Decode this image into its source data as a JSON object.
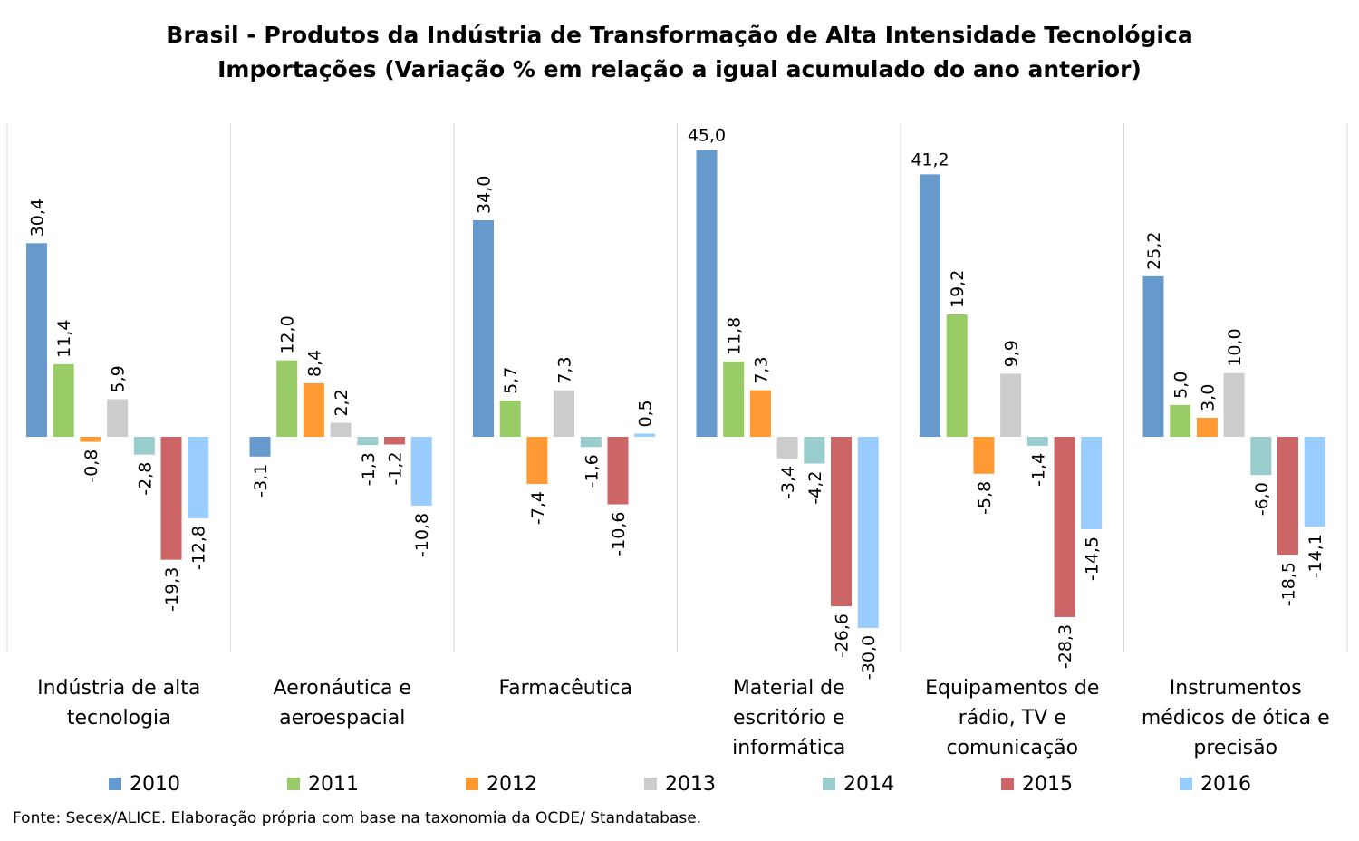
{
  "chart_data": {
    "type": "bar",
    "title": "Brasil - Produtos da Indústria de Transformação de Alta Intensidade Tecnológica",
    "subtitle": "Importações (Variação % em relação a igual acumulado do ano anterior)",
    "categories": [
      [
        "Indústria de alta",
        "tecnologia"
      ],
      [
        "Aeronáutica e",
        "aeroespacial"
      ],
      [
        "Farmacêutica"
      ],
      [
        "Material de",
        "escritório e",
        "informática"
      ],
      [
        "Equipamentos de",
        "rádio, TV e",
        "comunicação"
      ],
      [
        "Instrumentos",
        "médicos de ótica e",
        "precisão"
      ]
    ],
    "series": [
      {
        "name": "2010",
        "color": "#6699CC",
        "values": [
          30.4,
          -3.1,
          34.0,
          45.0,
          41.2,
          25.2
        ],
        "labels": [
          "30,4",
          "-3,1",
          "34,0",
          "45,0",
          "41,2",
          "25,2"
        ]
      },
      {
        "name": "2011",
        "color": "#99CC66",
        "values": [
          11.4,
          12.0,
          5.7,
          11.8,
          19.2,
          5.0
        ],
        "labels": [
          "11,4",
          "12,0",
          "5,7",
          "11,8",
          "19,2",
          "5,0"
        ]
      },
      {
        "name": "2012",
        "color": "#FF9933",
        "values": [
          -0.8,
          8.4,
          -7.4,
          7.3,
          -5.8,
          3.0
        ],
        "labels": [
          "-0,8",
          "8,4",
          "-7,4",
          "7,3",
          "-5,8",
          "3,0"
        ]
      },
      {
        "name": "2013",
        "color": "#CCCCCC",
        "values": [
          5.9,
          2.2,
          7.3,
          -3.4,
          9.9,
          10.0
        ],
        "labels": [
          "5,9",
          "2,2",
          "7,3",
          "-3,4",
          "9,9",
          "10,0"
        ]
      },
      {
        "name": "2014",
        "color": "#99CCCC",
        "values": [
          -2.8,
          -1.3,
          -1.6,
          -4.2,
          -1.4,
          -6.0
        ],
        "labels": [
          "-2,8",
          "-1,3",
          "-1,6",
          "-4,2",
          "-1,4",
          "-6,0"
        ]
      },
      {
        "name": "2015",
        "color": "#CC6666",
        "values": [
          -19.3,
          -1.2,
          -10.6,
          -26.6,
          -28.3,
          -18.5
        ],
        "labels": [
          "-19,3",
          "-1,2",
          "-10,6",
          "-26,6",
          "-28,3",
          "-18,5"
        ]
      },
      {
        "name": "2016",
        "color": "#99CCFF",
        "values": [
          -12.8,
          -10.8,
          0.5,
          -30.0,
          -14.5,
          -14.1
        ],
        "labels": [
          "-12,8",
          "-10,8",
          "0,5",
          "-30,0",
          "-14,5",
          "-14,1"
        ]
      }
    ],
    "ylim": [
      -33,
      50
    ],
    "legend_position": "bottom",
    "grid": false
  },
  "footer": {
    "source": "Fonte: Secex/ALICE. Elaboração própria com base na taxonomia da OCDE/ Standatabase."
  }
}
